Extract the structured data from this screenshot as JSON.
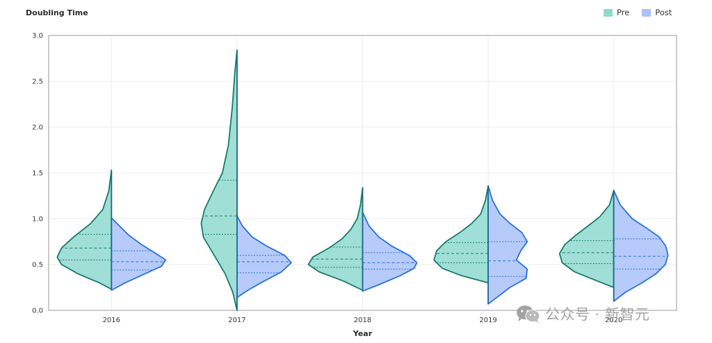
{
  "chart_data": {
    "type": "violin",
    "title": "Doubling Time",
    "xlabel": "Year",
    "ylabel": "",
    "ylim": [
      0,
      3.0
    ],
    "yticks": [
      "0.0",
      "0.5",
      "1.0",
      "1.5",
      "2.0",
      "2.5",
      "3.0"
    ],
    "categories": [
      "2016",
      "2017",
      "2018",
      "2019",
      "2020"
    ],
    "grid": true,
    "legend_position": "top-right",
    "series": [
      {
        "name": "Pre",
        "color": "#8fd9cf",
        "stroke": "#167a6b",
        "violins": [
          {
            "category": "2016",
            "min": 0.23,
            "max": 1.53,
            "q1": 0.55,
            "median": 0.68,
            "q3": 0.83,
            "profile": [
              [
                0.23,
                0.0
              ],
              [
                0.3,
                0.22
              ],
              [
                0.4,
                0.62
              ],
              [
                0.5,
                0.92
              ],
              [
                0.58,
                1.0
              ],
              [
                0.68,
                0.92
              ],
              [
                0.8,
                0.7
              ],
              [
                0.95,
                0.38
              ],
              [
                1.1,
                0.16
              ],
              [
                1.3,
                0.05
              ],
              [
                1.53,
                0.0
              ]
            ]
          },
          {
            "category": "2017",
            "min": 0.0,
            "max": 2.84,
            "q1": 0.83,
            "median": 1.03,
            "q3": 1.42,
            "profile": [
              [
                0.0,
                0.0
              ],
              [
                0.2,
                0.08
              ],
              [
                0.4,
                0.22
              ],
              [
                0.6,
                0.42
              ],
              [
                0.8,
                0.62
              ],
              [
                0.95,
                0.66
              ],
              [
                1.1,
                0.6
              ],
              [
                1.3,
                0.44
              ],
              [
                1.5,
                0.27
              ],
              [
                1.8,
                0.16
              ],
              [
                2.2,
                0.09
              ],
              [
                2.6,
                0.04
              ],
              [
                2.84,
                0.0
              ]
            ]
          },
          {
            "category": "2018",
            "min": 0.22,
            "max": 1.34,
            "q1": 0.47,
            "median": 0.56,
            "q3": 0.69,
            "profile": [
              [
                0.22,
                0.0
              ],
              [
                0.32,
                0.35
              ],
              [
                0.42,
                0.8
              ],
              [
                0.5,
                1.0
              ],
              [
                0.58,
                0.92
              ],
              [
                0.68,
                0.62
              ],
              [
                0.78,
                0.38
              ],
              [
                0.88,
                0.22
              ],
              [
                1.0,
                0.1
              ],
              [
                1.15,
                0.04
              ],
              [
                1.34,
                0.0
              ]
            ]
          },
          {
            "category": "2019",
            "min": 0.3,
            "max": 1.36,
            "q1": 0.52,
            "median": 0.62,
            "q3": 0.74,
            "profile": [
              [
                0.3,
                0.0
              ],
              [
                0.38,
                0.5
              ],
              [
                0.46,
                0.85
              ],
              [
                0.55,
                1.0
              ],
              [
                0.65,
                0.95
              ],
              [
                0.75,
                0.78
              ],
              [
                0.85,
                0.52
              ],
              [
                0.95,
                0.3
              ],
              [
                1.05,
                0.14
              ],
              [
                1.2,
                0.05
              ],
              [
                1.36,
                0.0
              ]
            ]
          },
          {
            "category": "2020",
            "min": 0.25,
            "max": 1.31,
            "q1": 0.51,
            "median": 0.63,
            "q3": 0.76,
            "profile": [
              [
                0.25,
                0.0
              ],
              [
                0.32,
                0.3
              ],
              [
                0.42,
                0.72
              ],
              [
                0.52,
                0.95
              ],
              [
                0.62,
                1.0
              ],
              [
                0.72,
                0.9
              ],
              [
                0.82,
                0.7
              ],
              [
                0.92,
                0.48
              ],
              [
                1.02,
                0.26
              ],
              [
                1.15,
                0.08
              ],
              [
                1.31,
                0.0
              ]
            ]
          }
        ]
      },
      {
        "name": "Post",
        "color": "#a9c2f8",
        "stroke": "#2a6fdb",
        "violins": [
          {
            "category": "2016",
            "min": 0.22,
            "max": 1.01,
            "q1": 0.44,
            "median": 0.53,
            "q3": 0.65,
            "profile": [
              [
                0.22,
                0.0
              ],
              [
                0.3,
                0.25
              ],
              [
                0.4,
                0.62
              ],
              [
                0.48,
                0.92
              ],
              [
                0.55,
                1.0
              ],
              [
                0.62,
                0.82
              ],
              [
                0.72,
                0.55
              ],
              [
                0.82,
                0.32
              ],
              [
                0.92,
                0.15
              ],
              [
                1.01,
                0.0
              ]
            ]
          },
          {
            "category": "2017",
            "min": 0.14,
            "max": 1.03,
            "q1": 0.41,
            "median": 0.53,
            "q3": 0.6,
            "profile": [
              [
                0.14,
                0.0
              ],
              [
                0.22,
                0.2
              ],
              [
                0.32,
                0.5
              ],
              [
                0.42,
                0.82
              ],
              [
                0.52,
                1.0
              ],
              [
                0.6,
                0.88
              ],
              [
                0.7,
                0.55
              ],
              [
                0.8,
                0.28
              ],
              [
                0.92,
                0.1
              ],
              [
                1.03,
                0.0
              ]
            ]
          },
          {
            "category": "2018",
            "min": 0.21,
            "max": 1.07,
            "q1": 0.45,
            "median": 0.52,
            "q3": 0.63,
            "profile": [
              [
                0.21,
                0.0
              ],
              [
                0.28,
                0.3
              ],
              [
                0.38,
                0.7
              ],
              [
                0.46,
                0.95
              ],
              [
                0.52,
                1.0
              ],
              [
                0.6,
                0.86
              ],
              [
                0.7,
                0.54
              ],
              [
                0.8,
                0.3
              ],
              [
                0.92,
                0.12
              ],
              [
                1.07,
                0.0
              ]
            ]
          },
          {
            "category": "2019",
            "min": 0.07,
            "max": 1.36,
            "q1": 0.37,
            "median": 0.54,
            "q3": 0.75,
            "profile": [
              [
                0.07,
                0.0
              ],
              [
                0.15,
                0.18
              ],
              [
                0.25,
                0.4
              ],
              [
                0.35,
                0.7
              ],
              [
                0.45,
                0.72
              ],
              [
                0.55,
                0.52
              ],
              [
                0.65,
                0.6
              ],
              [
                0.75,
                0.72
              ],
              [
                0.85,
                0.62
              ],
              [
                0.95,
                0.4
              ],
              [
                1.05,
                0.22
              ],
              [
                1.2,
                0.08
              ],
              [
                1.36,
                0.0
              ]
            ]
          },
          {
            "category": "2020",
            "min": 0.1,
            "max": 1.31,
            "q1": 0.45,
            "median": 0.59,
            "q3": 0.78,
            "profile": [
              [
                0.1,
                0.0
              ],
              [
                0.2,
                0.22
              ],
              [
                0.3,
                0.52
              ],
              [
                0.4,
                0.78
              ],
              [
                0.5,
                0.95
              ],
              [
                0.6,
                1.0
              ],
              [
                0.7,
                0.96
              ],
              [
                0.8,
                0.84
              ],
              [
                0.9,
                0.6
              ],
              [
                1.0,
                0.34
              ],
              [
                1.15,
                0.12
              ],
              [
                1.31,
                0.0
              ]
            ]
          }
        ]
      }
    ]
  },
  "watermark": {
    "text": "公众号 · 新智元",
    "icon": "wechat-icon"
  }
}
